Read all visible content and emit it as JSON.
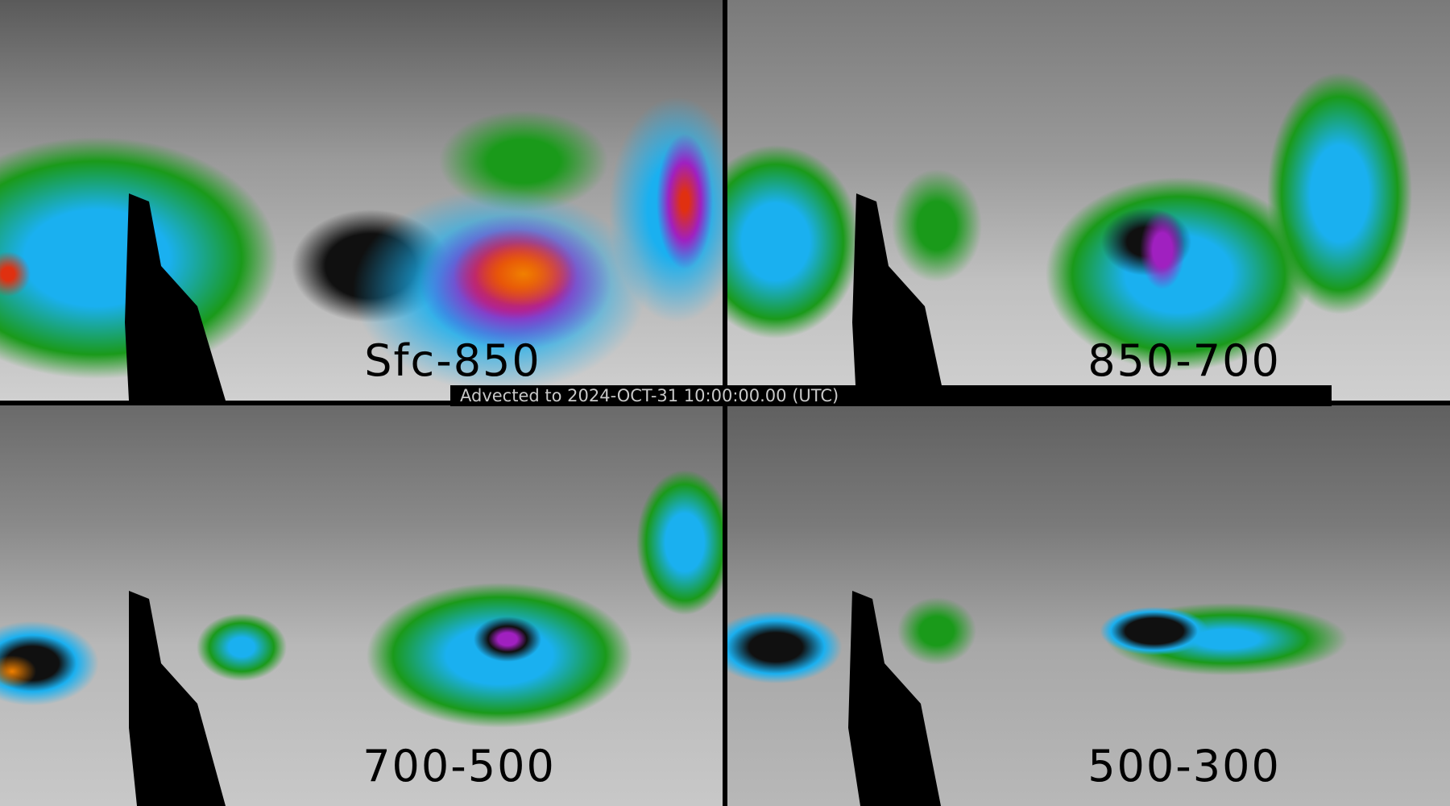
{
  "panels": [
    {
      "label": "Sfc-850",
      "color_coded": true
    },
    {
      "label": "850-700",
      "color_coded": true
    },
    {
      "label": "700-500",
      "color_coded": true
    },
    {
      "label": "500-300",
      "color_coded": true
    }
  ],
  "caption": "Advected to 2024-OCT-31  10:00:00.00 (UTC)",
  "colors": {
    "green": "#1a9a1a",
    "cyan": "#1ab0f0",
    "blue": "#2060e0",
    "purple": "#a020c0",
    "red": "#e03010",
    "orange": "#f08000",
    "gray": "#808080",
    "background": "#000000"
  }
}
